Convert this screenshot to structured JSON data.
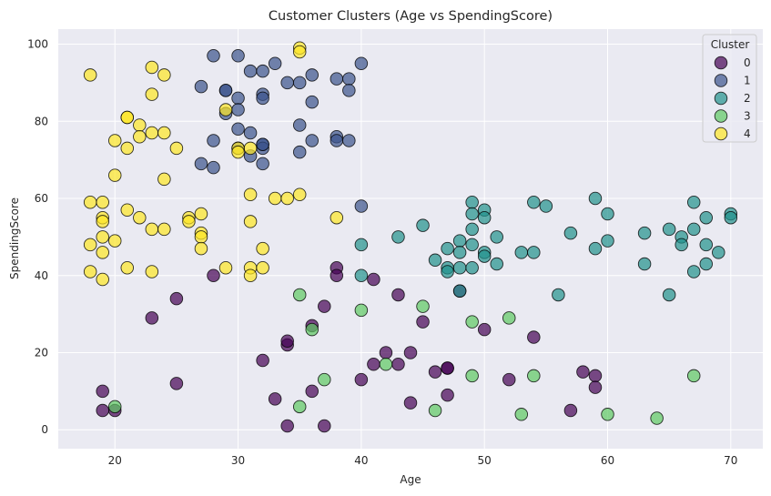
{
  "chart_data": {
    "type": "scatter",
    "title": "Customer Clusters (Age vs SpendingScore)",
    "xlabel": "Age",
    "ylabel": "SpendingScore",
    "xlim": [
      15.4,
      72.6
    ],
    "ylim": [
      -4.9,
      103.9
    ],
    "xticks": [
      20,
      30,
      40,
      50,
      60,
      70
    ],
    "yticks": [
      0,
      20,
      40,
      60,
      80,
      100
    ],
    "grid": true,
    "legend": {
      "title": "Cluster",
      "placement": "top-right"
    },
    "series": [
      {
        "name": "0",
        "color": "#440154",
        "points": [
          [
            19,
            10
          ],
          [
            19,
            5
          ],
          [
            20,
            5
          ],
          [
            23,
            29
          ],
          [
            25,
            34
          ],
          [
            25,
            12
          ],
          [
            28,
            40
          ],
          [
            32,
            18
          ],
          [
            33,
            8
          ],
          [
            34,
            1
          ],
          [
            34,
            22
          ],
          [
            34,
            23
          ],
          [
            36,
            27
          ],
          [
            36,
            10
          ],
          [
            37,
            32
          ],
          [
            37,
            1
          ],
          [
            38,
            42
          ],
          [
            38,
            40
          ],
          [
            40,
            13
          ],
          [
            41,
            39
          ],
          [
            41,
            17
          ],
          [
            42,
            20
          ],
          [
            43,
            35
          ],
          [
            43,
            17
          ],
          [
            44,
            20
          ],
          [
            44,
            7
          ],
          [
            45,
            28
          ],
          [
            46,
            15
          ],
          [
            47,
            16
          ],
          [
            47,
            16
          ],
          [
            47,
            9
          ],
          [
            48,
            36
          ],
          [
            50,
            26
          ],
          [
            52,
            13
          ],
          [
            54,
            24
          ],
          [
            57,
            5
          ],
          [
            58,
            15
          ],
          [
            59,
            14
          ],
          [
            59,
            11
          ]
        ]
      },
      {
        "name": "1",
        "color": "#3b528b",
        "points": [
          [
            27,
            89
          ],
          [
            27,
            69
          ],
          [
            28,
            97
          ],
          [
            28,
            75
          ],
          [
            28,
            68
          ],
          [
            29,
            88
          ],
          [
            29,
            88
          ],
          [
            29,
            82
          ],
          [
            30,
            97
          ],
          [
            30,
            86
          ],
          [
            30,
            78
          ],
          [
            30,
            83
          ],
          [
            30,
            73
          ],
          [
            31,
            93
          ],
          [
            31,
            77
          ],
          [
            31,
            71
          ],
          [
            32,
            93
          ],
          [
            32,
            87
          ],
          [
            32,
            86
          ],
          [
            32,
            74
          ],
          [
            32,
            73
          ],
          [
            32,
            74
          ],
          [
            32,
            69
          ],
          [
            33,
            95
          ],
          [
            34,
            90
          ],
          [
            35,
            90
          ],
          [
            35,
            79
          ],
          [
            35,
            72
          ],
          [
            36,
            92
          ],
          [
            36,
            85
          ],
          [
            36,
            75
          ],
          [
            38,
            91
          ],
          [
            38,
            76
          ],
          [
            38,
            75
          ],
          [
            39,
            91
          ],
          [
            39,
            88
          ],
          [
            39,
            75
          ],
          [
            40,
            95
          ],
          [
            40,
            58
          ]
        ]
      },
      {
        "name": "2",
        "color": "#21918c",
        "points": [
          [
            40,
            48
          ],
          [
            40,
            40
          ],
          [
            43,
            50
          ],
          [
            45,
            53
          ],
          [
            46,
            44
          ],
          [
            47,
            47
          ],
          [
            47,
            42
          ],
          [
            47,
            41
          ],
          [
            48,
            49
          ],
          [
            48,
            46
          ],
          [
            48,
            42
          ],
          [
            48,
            36
          ],
          [
            49,
            59
          ],
          [
            49,
            56
          ],
          [
            49,
            52
          ],
          [
            49,
            48
          ],
          [
            49,
            42
          ],
          [
            50,
            57
          ],
          [
            50,
            55
          ],
          [
            50,
            46
          ],
          [
            50,
            45
          ],
          [
            51,
            50
          ],
          [
            51,
            43
          ],
          [
            53,
            46
          ],
          [
            54,
            59
          ],
          [
            54,
            46
          ],
          [
            55,
            58
          ],
          [
            56,
            35
          ],
          [
            57,
            51
          ],
          [
            59,
            60
          ],
          [
            59,
            47
          ],
          [
            60,
            56
          ],
          [
            60,
            49
          ],
          [
            63,
            51
          ],
          [
            63,
            43
          ],
          [
            65,
            52
          ],
          [
            65,
            35
          ],
          [
            66,
            50
          ],
          [
            66,
            48
          ],
          [
            67,
            59
          ],
          [
            67,
            52
          ],
          [
            67,
            41
          ],
          [
            68,
            55
          ],
          [
            68,
            48
          ],
          [
            68,
            43
          ],
          [
            69,
            46
          ],
          [
            70,
            56
          ],
          [
            70,
            55
          ]
        ]
      },
      {
        "name": "3",
        "color": "#5ec962",
        "points": [
          [
            20,
            6
          ],
          [
            35,
            35
          ],
          [
            35,
            6
          ],
          [
            36,
            26
          ],
          [
            37,
            13
          ],
          [
            40,
            31
          ],
          [
            42,
            17
          ],
          [
            45,
            32
          ],
          [
            46,
            5
          ],
          [
            49,
            28
          ],
          [
            49,
            14
          ],
          [
            52,
            29
          ],
          [
            53,
            4
          ],
          [
            54,
            14
          ],
          [
            60,
            4
          ],
          [
            64,
            3
          ],
          [
            67,
            14
          ]
        ]
      },
      {
        "name": "4",
        "color": "#fde725",
        "points": [
          [
            18,
            92
          ],
          [
            18,
            59
          ],
          [
            18,
            48
          ],
          [
            18,
            41
          ],
          [
            19,
            59
          ],
          [
            19,
            55
          ],
          [
            19,
            54
          ],
          [
            19,
            50
          ],
          [
            19,
            46
          ],
          [
            19,
            39
          ],
          [
            20,
            75
          ],
          [
            20,
            66
          ],
          [
            20,
            49
          ],
          [
            21,
            81
          ],
          [
            21,
            81
          ],
          [
            21,
            73
          ],
          [
            21,
            57
          ],
          [
            21,
            42
          ],
          [
            22,
            79
          ],
          [
            22,
            76
          ],
          [
            22,
            55
          ],
          [
            23,
            94
          ],
          [
            23,
            87
          ],
          [
            23,
            77
          ],
          [
            23,
            52
          ],
          [
            23,
            41
          ],
          [
            24,
            92
          ],
          [
            24,
            77
          ],
          [
            24,
            65
          ],
          [
            24,
            52
          ],
          [
            25,
            73
          ],
          [
            26,
            55
          ],
          [
            26,
            54
          ],
          [
            27,
            56
          ],
          [
            27,
            51
          ],
          [
            27,
            50
          ],
          [
            27,
            47
          ],
          [
            29,
            83
          ],
          [
            29,
            42
          ],
          [
            30,
            73
          ],
          [
            30,
            72
          ],
          [
            31,
            73
          ],
          [
            31,
            61
          ],
          [
            31,
            54
          ],
          [
            31,
            42
          ],
          [
            31,
            40
          ],
          [
            32,
            47
          ],
          [
            32,
            42
          ],
          [
            33,
            60
          ],
          [
            34,
            60
          ],
          [
            35,
            99
          ],
          [
            35,
            98
          ],
          [
            35,
            61
          ],
          [
            38,
            55
          ]
        ]
      }
    ]
  }
}
